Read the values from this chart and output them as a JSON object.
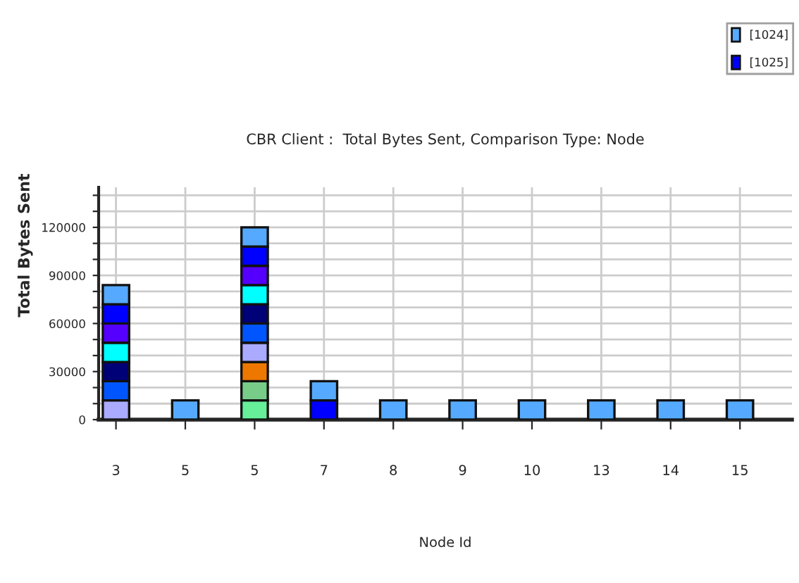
{
  "chart_data": {
    "type": "bar",
    "stacked": true,
    "title": "CBR Client :  Total Bytes Sent, Comparison Type: Node",
    "xlabel": "Node Id",
    "ylabel": "Total Bytes Sent",
    "categories": [
      "3",
      "5",
      "5",
      "7",
      "8",
      "9",
      "10",
      "13",
      "14",
      "15"
    ],
    "series": [
      {
        "color": "#66ee99",
        "values": [
          null,
          null,
          12000,
          null,
          null,
          null,
          null,
          null,
          null,
          null
        ]
      },
      {
        "color": "#77cc88",
        "values": [
          null,
          null,
          12000,
          null,
          null,
          null,
          null,
          null,
          null,
          null
        ]
      },
      {
        "color": "#ee7700",
        "values": [
          null,
          null,
          12000,
          null,
          null,
          null,
          null,
          null,
          null,
          null
        ]
      },
      {
        "color": "#aaaaff",
        "values": [
          12000,
          null,
          12000,
          null,
          null,
          null,
          null,
          null,
          null,
          null
        ]
      },
      {
        "color": "#0055ff",
        "values": [
          12000,
          null,
          12000,
          null,
          null,
          null,
          null,
          null,
          null,
          null
        ]
      },
      {
        "color": "#000077",
        "values": [
          12000,
          null,
          12000,
          null,
          null,
          null,
          null,
          null,
          null,
          null
        ]
      },
      {
        "color": "#00ffff",
        "values": [
          12000,
          null,
          12000,
          null,
          null,
          null,
          null,
          null,
          null,
          null
        ]
      },
      {
        "color": "#5500ff",
        "values": [
          12000,
          null,
          12000,
          null,
          null,
          null,
          null,
          null,
          null,
          null
        ]
      },
      {
        "name": "[1025]",
        "color": "#0000ff",
        "values": [
          12000,
          null,
          12000,
          12000,
          null,
          null,
          null,
          null,
          null,
          null
        ]
      },
      {
        "name": "[1024]",
        "color": "#55aaff",
        "values": [
          12000,
          12000,
          12000,
          12000,
          12000,
          12000,
          12000,
          12000,
          12000,
          12000
        ]
      }
    ],
    "ylim": [
      0,
      145000
    ],
    "yticks": [
      0,
      {
        "value": 10000,
        "label": null
      },
      {
        "value": 20000,
        "label": null
      },
      30000,
      {
        "value": 40000,
        "label": null
      },
      {
        "value": 50000,
        "label": null
      },
      60000,
      {
        "value": 70000,
        "label": null
      },
      {
        "value": 80000,
        "label": null
      },
      90000,
      {
        "value": 100000,
        "label": null
      },
      {
        "value": 110000,
        "label": null
      },
      120000,
      {
        "value": 130000,
        "label": null
      },
      {
        "value": 140000,
        "label": null
      }
    ],
    "grid": true,
    "legend": "top right"
  }
}
